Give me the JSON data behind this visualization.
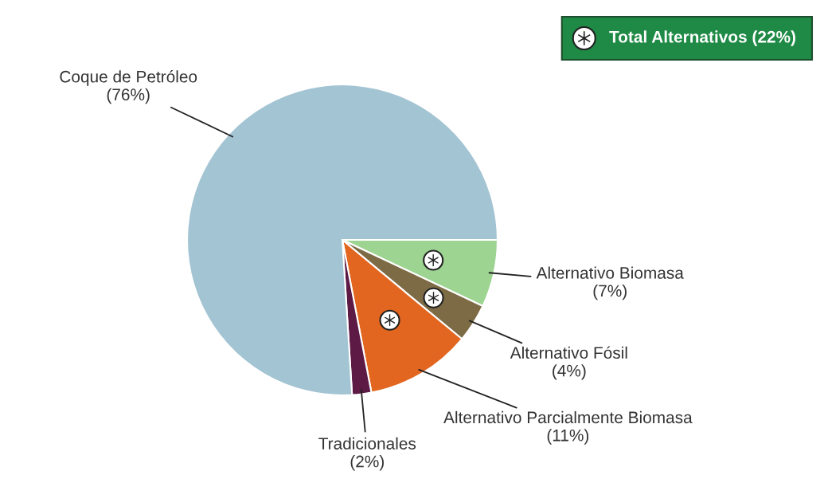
{
  "chart_data": {
    "type": "pie",
    "categories": [
      "Alternativo Biomasa",
      "Alternativo Fósil",
      "Alternativo Parcialmente Biomasa",
      "Tradicionales",
      "Coque de Petróleo"
    ],
    "values": [
      7,
      4,
      11,
      2,
      76
    ],
    "colors": [
      "#9dd492",
      "#7d6b45",
      "#e2661f",
      "#5c1a45",
      "#a3c4d3"
    ],
    "value_labels": [
      "(7%)",
      "(4%)",
      "(11%)",
      "(2%)",
      "(76%)"
    ],
    "annotations": [
      "Total Alternativos (22%)"
    ]
  }
}
